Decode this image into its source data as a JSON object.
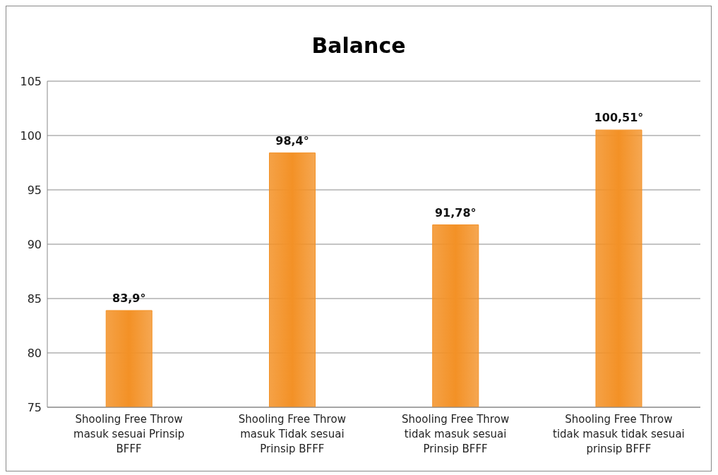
{
  "chart_data": {
    "type": "bar",
    "title": "Balance",
    "categories": [
      "Shooling Free Throw masuk sesuai Prinsip BFFF",
      "Shooling Free Throw masuk Tidak sesuai Prinsip BFFF",
      "Shooling Free Throw tidak masuk sesuai Prinsip BFFF",
      "Shooling Free Throw tidak masuk tidak sesuai prinsip BFFF"
    ],
    "values": [
      83.9,
      98.4,
      91.78,
      100.51
    ],
    "value_labels": [
      "83,9°",
      "98,4°",
      "91,78°",
      "100,51°"
    ],
    "color": "#f39126",
    "ylim": [
      75,
      105
    ],
    "yticks": [
      75,
      80,
      85,
      90,
      95,
      100,
      105
    ],
    "grid": "y"
  }
}
